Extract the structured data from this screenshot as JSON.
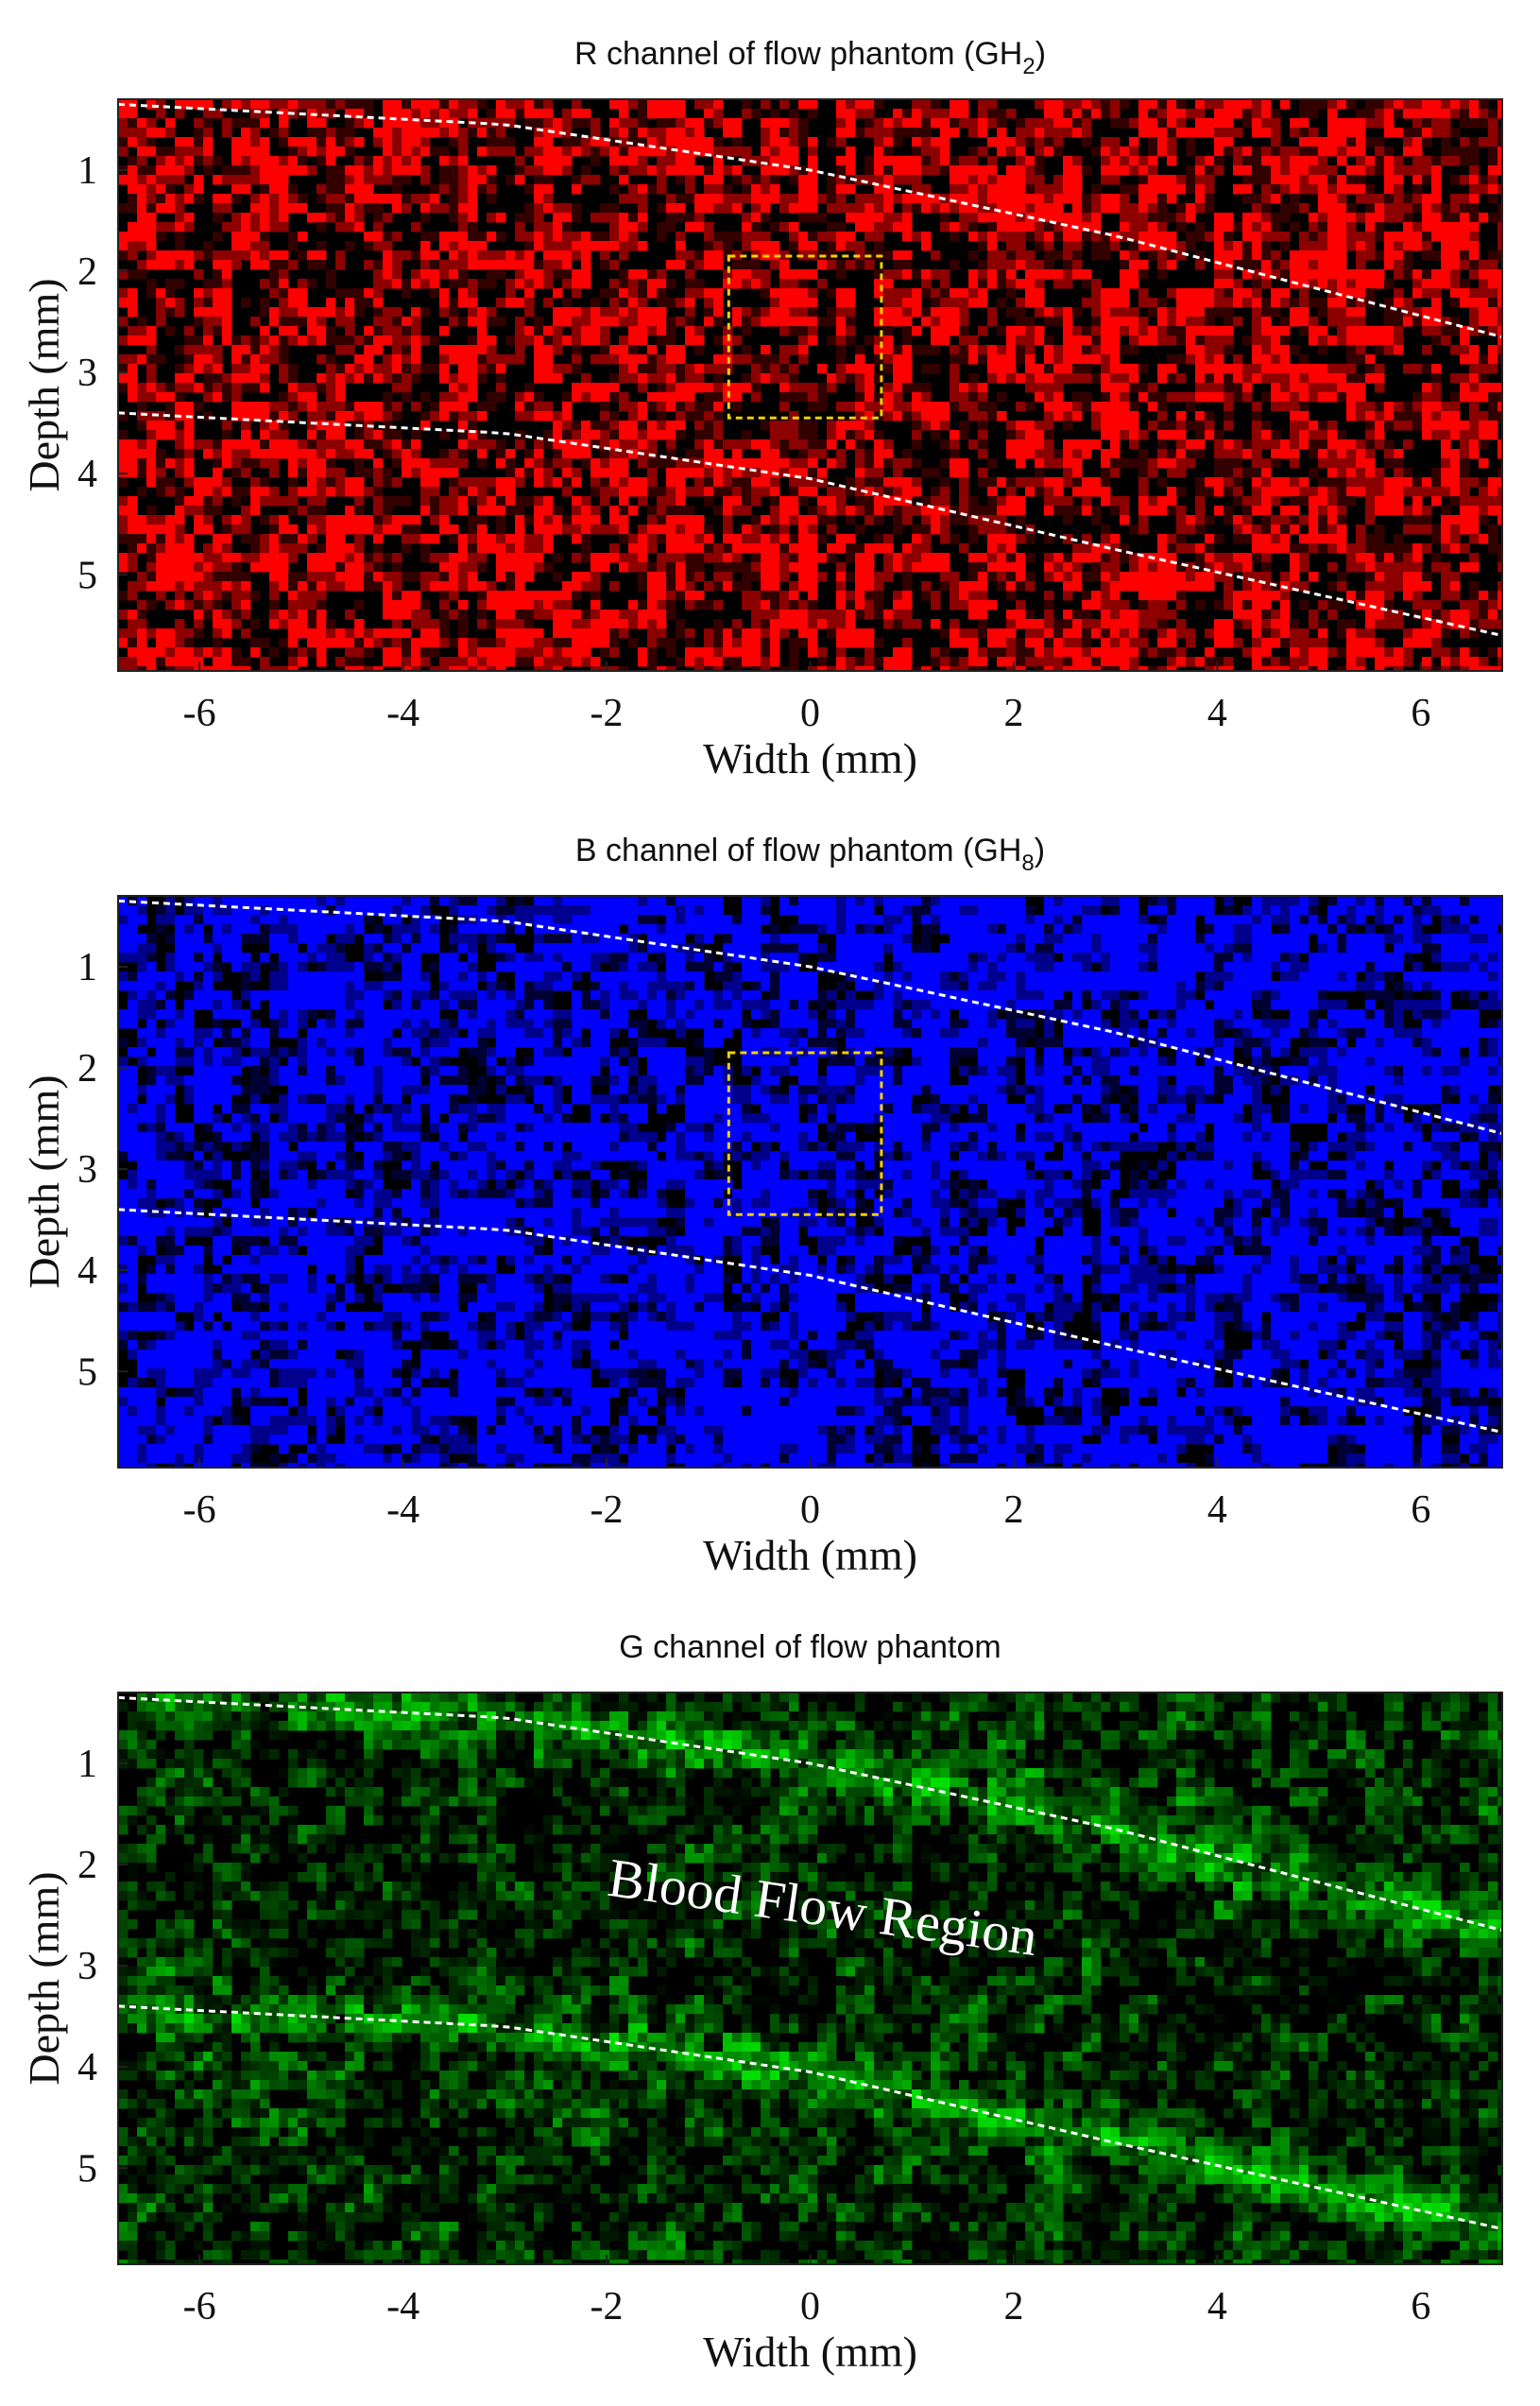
{
  "chart_data": [
    {
      "type": "heatmap",
      "title": "R channel of flow phantom (GH",
      "title_sub": "2",
      "title_end": ")",
      "xlabel": "Width (mm)",
      "ylabel": "Depth (mm)",
      "xlim": [
        -6.8,
        6.8
      ],
      "ylim": [
        5.95,
        0.3
      ],
      "x_ticks": [
        -6,
        -4,
        -2,
        0,
        2,
        4,
        6
      ],
      "y_ticks": [
        1,
        2,
        3,
        4,
        5
      ],
      "color": "#ff0000",
      "base_intensity": 0.45,
      "vessel_intensity": 0.4,
      "vessel_walls": [
        {
          "x": [
            -6.8,
            -3,
            0,
            3,
            6.8
          ],
          "y": [
            0.35,
            0.55,
            1.0,
            1.65,
            2.65
          ]
        },
        {
          "x": [
            -6.8,
            -3,
            0,
            3,
            6.8
          ],
          "y": [
            3.4,
            3.6,
            4.05,
            4.75,
            5.6
          ]
        }
      ],
      "roi_box": {
        "x": [
          -0.8,
          0.7
        ],
        "y": [
          1.85,
          3.45
        ]
      }
    },
    {
      "type": "heatmap",
      "title": "B channel of flow phantom (GH",
      "title_sub": "8",
      "title_end": ")",
      "xlabel": "Width (mm)",
      "ylabel": "Depth (mm)",
      "xlim": [
        -6.8,
        6.8
      ],
      "ylim": [
        5.95,
        0.3
      ],
      "x_ticks": [
        -6,
        -4,
        -2,
        0,
        2,
        4,
        6
      ],
      "y_ticks": [
        1,
        2,
        3,
        4,
        5
      ],
      "color": "#0000ff",
      "base_intensity": 0.62,
      "vessel_intensity": 0.55,
      "vessel_walls": [
        {
          "x": [
            -6.8,
            -3,
            0,
            3,
            6.8
          ],
          "y": [
            0.35,
            0.55,
            1.0,
            1.65,
            2.65
          ]
        },
        {
          "x": [
            -6.8,
            -3,
            0,
            3,
            6.8
          ],
          "y": [
            3.4,
            3.6,
            4.05,
            4.75,
            5.6
          ]
        }
      ],
      "roi_box": {
        "x": [
          -0.8,
          0.7
        ],
        "y": [
          1.85,
          3.45
        ]
      }
    },
    {
      "type": "heatmap",
      "title": "G channel of flow phantom",
      "title_sub": "",
      "title_end": "",
      "xlabel": "Width (mm)",
      "ylabel": "Depth (mm)",
      "xlim": [
        -6.8,
        6.8
      ],
      "ylim": [
        5.95,
        0.3
      ],
      "x_ticks": [
        -6,
        -4,
        -2,
        0,
        2,
        4,
        6
      ],
      "y_ticks": [
        1,
        2,
        3,
        4,
        5
      ],
      "color": "#00e000",
      "base_intensity": 0.14,
      "vessel_intensity": 0.1,
      "wall_boost": 0.55,
      "vessel_walls": [
        {
          "x": [
            -6.8,
            -3,
            0,
            3,
            6.8
          ],
          "y": [
            0.35,
            0.55,
            1.0,
            1.65,
            2.65
          ]
        },
        {
          "x": [
            -6.8,
            -3,
            0,
            3,
            6.8
          ],
          "y": [
            3.4,
            3.6,
            4.05,
            4.75,
            5.6
          ]
        }
      ],
      "annotation": {
        "text": "Blood Flow Region",
        "x": 0.1,
        "y": 2.6,
        "rotate": 8
      }
    }
  ]
}
